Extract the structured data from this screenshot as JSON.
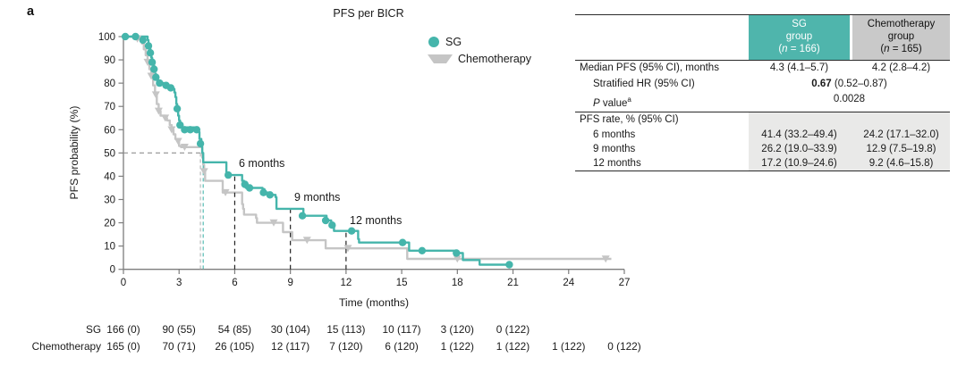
{
  "panel_label": "a",
  "colors": {
    "sg_teal": "#45b5ab",
    "chemo_gray": "#c5c5c5",
    "sg_header_bg": "#4fb5ac",
    "chemo_header_bg": "#c9c9c9",
    "rate_section_shade": "#e9e9e8",
    "axis_gray": "#7d7d7d"
  },
  "chart_data": {
    "type": "line",
    "subtype": "kaplan-meier-step",
    "title": "PFS per BICR",
    "xlabel": "Time (months)",
    "ylabel": "PFS probability (%)",
    "xlim": [
      0,
      27
    ],
    "ylim": [
      0,
      100
    ],
    "xticks": [
      0,
      3,
      6,
      9,
      12,
      15,
      18,
      21,
      24,
      27
    ],
    "yticks": [
      0,
      10,
      20,
      30,
      40,
      50,
      60,
      70,
      80,
      90,
      100
    ],
    "grid": false,
    "legend_position": "upper-right-inside",
    "series": [
      {
        "name": "SG",
        "color": "#45b5ab",
        "marker": "circle",
        "steps": [
          [
            0,
            100
          ],
          [
            1.3,
            98.5
          ],
          [
            1.35,
            96
          ],
          [
            1.45,
            93
          ],
          [
            1.5,
            91
          ],
          [
            1.55,
            89
          ],
          [
            1.6,
            88
          ],
          [
            1.65,
            86
          ],
          [
            1.7,
            84
          ],
          [
            1.75,
            82.5
          ],
          [
            1.85,
            81
          ],
          [
            2.0,
            80
          ],
          [
            2.2,
            79
          ],
          [
            2.5,
            78
          ],
          [
            2.7,
            77.5
          ],
          [
            2.75,
            76
          ],
          [
            2.8,
            74
          ],
          [
            2.85,
            71
          ],
          [
            2.9,
            69
          ],
          [
            2.95,
            66
          ],
          [
            3.0,
            64
          ],
          [
            3.05,
            62
          ],
          [
            3.1,
            61
          ],
          [
            3.9,
            60
          ],
          [
            4.05,
            59
          ],
          [
            4.1,
            56
          ],
          [
            4.2,
            53
          ],
          [
            4.25,
            50
          ],
          [
            4.3,
            46
          ],
          [
            5.45,
            46
          ],
          [
            5.55,
            40.5
          ],
          [
            6.3,
            40.5
          ],
          [
            6.4,
            38
          ],
          [
            6.5,
            36.5
          ],
          [
            6.6,
            35
          ],
          [
            7.5,
            34.5
          ],
          [
            7.6,
            33
          ],
          [
            7.9,
            32
          ],
          [
            8.2,
            31
          ],
          [
            8.25,
            26
          ],
          [
            9.6,
            26
          ],
          [
            9.7,
            23
          ],
          [
            10.85,
            23
          ],
          [
            10.95,
            21
          ],
          [
            11.2,
            19
          ],
          [
            11.35,
            16.5
          ],
          [
            12.6,
            16.5
          ],
          [
            12.65,
            13
          ],
          [
            12.7,
            11.5
          ],
          [
            15.35,
            11.5
          ],
          [
            15.4,
            8
          ],
          [
            17.9,
            8
          ],
          [
            17.95,
            7
          ],
          [
            18.25,
            7
          ],
          [
            18.3,
            4
          ],
          [
            19.15,
            4
          ],
          [
            19.2,
            2
          ],
          [
            20.8,
            2
          ]
        ],
        "censor_marks": [
          [
            0.1,
            100
          ],
          [
            0.65,
            100
          ],
          [
            1.05,
            98.5
          ],
          [
            1.35,
            96
          ],
          [
            1.45,
            93
          ],
          [
            1.55,
            89
          ],
          [
            1.65,
            86
          ],
          [
            1.75,
            82.5
          ],
          [
            1.95,
            80
          ],
          [
            2.3,
            79
          ],
          [
            2.55,
            78
          ],
          [
            2.9,
            69
          ],
          [
            3.05,
            62
          ],
          [
            3.3,
            60
          ],
          [
            3.6,
            60
          ],
          [
            3.95,
            60
          ],
          [
            4.15,
            54
          ],
          [
            5.65,
            40.5
          ],
          [
            6.55,
            36.5
          ],
          [
            6.8,
            35
          ],
          [
            7.55,
            33
          ],
          [
            7.9,
            32
          ],
          [
            9.65,
            23
          ],
          [
            10.9,
            21
          ],
          [
            11.25,
            19
          ],
          [
            12.3,
            16.5
          ],
          [
            15.05,
            11.5
          ],
          [
            16.1,
            8
          ],
          [
            17.95,
            7
          ],
          [
            20.8,
            2
          ]
        ]
      },
      {
        "name": "Chemotherapy",
        "color": "#c5c5c5",
        "marker": "triangle-down",
        "steps": [
          [
            0,
            100
          ],
          [
            0.75,
            99
          ],
          [
            1.0,
            97
          ],
          [
            1.1,
            94.5
          ],
          [
            1.2,
            92
          ],
          [
            1.3,
            89
          ],
          [
            1.4,
            86
          ],
          [
            1.5,
            83
          ],
          [
            1.6,
            79
          ],
          [
            1.7,
            75
          ],
          [
            1.8,
            71
          ],
          [
            1.9,
            68
          ],
          [
            2.0,
            66
          ],
          [
            2.25,
            65
          ],
          [
            2.35,
            64
          ],
          [
            2.5,
            62
          ],
          [
            2.6,
            60
          ],
          [
            2.7,
            58
          ],
          [
            2.8,
            56
          ],
          [
            2.9,
            55
          ],
          [
            3.0,
            53
          ],
          [
            3.1,
            52.5
          ],
          [
            4.2,
            52.5
          ],
          [
            4.25,
            48
          ],
          [
            4.3,
            45
          ],
          [
            4.35,
            42
          ],
          [
            4.4,
            38
          ],
          [
            5.3,
            38
          ],
          [
            5.35,
            33
          ],
          [
            6.35,
            33
          ],
          [
            6.4,
            28
          ],
          [
            6.45,
            26
          ],
          [
            6.5,
            23.5
          ],
          [
            7.1,
            23.5
          ],
          [
            7.15,
            22
          ],
          [
            7.2,
            20
          ],
          [
            8.55,
            20
          ],
          [
            8.6,
            16
          ],
          [
            9.05,
            16
          ],
          [
            9.1,
            12.5
          ],
          [
            10.85,
            12.5
          ],
          [
            10.9,
            9
          ],
          [
            15.25,
            9
          ],
          [
            15.3,
            4.5
          ],
          [
            26.3,
            4.5
          ]
        ],
        "censor_marks": [
          [
            0.75,
            99
          ],
          [
            1.3,
            89
          ],
          [
            1.5,
            83
          ],
          [
            1.75,
            75
          ],
          [
            1.9,
            68
          ],
          [
            2.25,
            65
          ],
          [
            2.6,
            60
          ],
          [
            2.95,
            55
          ],
          [
            3.3,
            52.5
          ],
          [
            4.35,
            42
          ],
          [
            5.5,
            33
          ],
          [
            8.1,
            20
          ],
          [
            9.9,
            12.5
          ],
          [
            12.1,
            9
          ],
          [
            18.0,
            4.5
          ],
          [
            26.0,
            4.5
          ]
        ]
      }
    ],
    "median_lines": {
      "horizontal_y": 50,
      "sg_median_x": 4.3,
      "chemo_median_x": 4.15
    },
    "milestones": [
      {
        "x": 6,
        "label": "6 months"
      },
      {
        "x": 9,
        "label": "9 months"
      },
      {
        "x": 12,
        "label": "12 months"
      }
    ],
    "risk_table": {
      "rows": [
        {
          "label": "SG",
          "counts": [
            "166 (0)",
            "90 (55)",
            "54 (85)",
            "30 (104)",
            "15 (113)",
            "10 (117)",
            "3 (120)",
            "0 (122)"
          ]
        },
        {
          "label": "Chemotherapy",
          "counts": [
            "165 (0)",
            "70 (71)",
            "26 (105)",
            "12 (117)",
            "7 (120)",
            "6 (120)",
            "1 (122)",
            "1 (122)",
            "1 (122)",
            "0 (122)"
          ]
        }
      ]
    }
  },
  "summary_table": {
    "header": {
      "sg_name": "SG",
      "sg_group": "group",
      "sg_n_pre": "(",
      "sg_n_it": "n",
      "sg_n_post": " = 166)",
      "ch_name": "Chemotherapy",
      "ch_group": "group",
      "ch_n_pre": "(",
      "ch_n_it": "n",
      "ch_n_post": " = 165)"
    },
    "rows": {
      "median": {
        "label": "Median PFS (95% CI), months",
        "sg": "4.3 (4.1–5.7)",
        "chemo": "4.2 (2.8–4.2)"
      },
      "hr": {
        "label": "Stratified HR (95% CI)",
        "bold": "0.67",
        "rest": " (0.52–0.87)"
      },
      "p": {
        "it": "P",
        "rest": " value",
        "sup": "a",
        "value": "0.0028"
      }
    },
    "rate_section": {
      "title": "PFS rate, % (95% CI)",
      "rows": [
        {
          "label": "6 months",
          "sg": "41.4 (33.2–49.4)",
          "chemo": "24.2 (17.1–32.0)"
        },
        {
          "label": "9 months",
          "sg": "26.2 (19.0–33.9)",
          "chemo": "12.9 (7.5–19.8)"
        },
        {
          "label": "12 months",
          "sg": "17.2 (10.9–24.6)",
          "chemo": "9.2 (4.6–15.8)"
        }
      ]
    }
  }
}
